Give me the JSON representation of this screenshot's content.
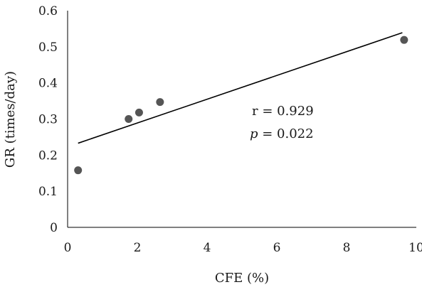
{
  "chart_data": {
    "type": "scatter",
    "xlabel": "CFE (%)",
    "ylabel": "GR (times/day)",
    "xlim": [
      0,
      10
    ],
    "ylim": [
      0,
      0.6
    ],
    "x_ticks": [
      0,
      2,
      4,
      6,
      8,
      10
    ],
    "y_ticks": [
      0,
      0.1,
      0.2,
      0.3,
      0.4,
      0.5,
      0.6
    ],
    "grid": false,
    "series": [
      {
        "x": [
          0.3,
          1.75,
          2.05,
          2.65,
          9.65
        ],
        "y": [
          0.158,
          0.3,
          0.318,
          0.347,
          0.519
        ]
      }
    ],
    "trendline": {
      "x": [
        0.3,
        9.6
      ],
      "y": [
        0.233,
        0.539
      ]
    },
    "annotations": {
      "r_text": "r = 0.929",
      "p_symbol": "p",
      "p_rest": " = 0.022"
    },
    "colors": {
      "points": "#555555",
      "line": "#000000",
      "text": "#1a1a1a"
    }
  }
}
